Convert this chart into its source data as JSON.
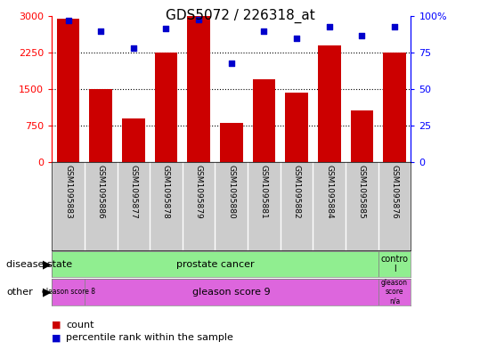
{
  "title": "GDS5072 / 226318_at",
  "samples": [
    "GSM1095883",
    "GSM1095886",
    "GSM1095877",
    "GSM1095878",
    "GSM1095879",
    "GSM1095880",
    "GSM1095881",
    "GSM1095882",
    "GSM1095884",
    "GSM1095885",
    "GSM1095876"
  ],
  "counts": [
    2950,
    1500,
    900,
    2250,
    3000,
    800,
    1700,
    1430,
    2400,
    1050,
    2250
  ],
  "percentiles": [
    97,
    90,
    78,
    92,
    98,
    68,
    90,
    85,
    93,
    87,
    93
  ],
  "ylim_left": [
    0,
    3000
  ],
  "ylim_right": [
    0,
    100
  ],
  "yticks_left": [
    0,
    750,
    1500,
    2250,
    3000
  ],
  "yticks_right": [
    0,
    25,
    50,
    75,
    100
  ],
  "bar_color": "#cc0000",
  "dot_color": "#0000cc",
  "prostate_cancer_color": "#90ee90",
  "control_color": "#90ee90",
  "gleason_color": "#dd66dd",
  "tick_area_bg": "#cccccc",
  "legend_count_label": "count",
  "legend_percentile_label": "percentile rank within the sample",
  "disease_state_row_label": "disease state",
  "other_row_label": "other",
  "bg_color": "#ffffff",
  "grid_color": "#888888",
  "title_fontsize": 11
}
